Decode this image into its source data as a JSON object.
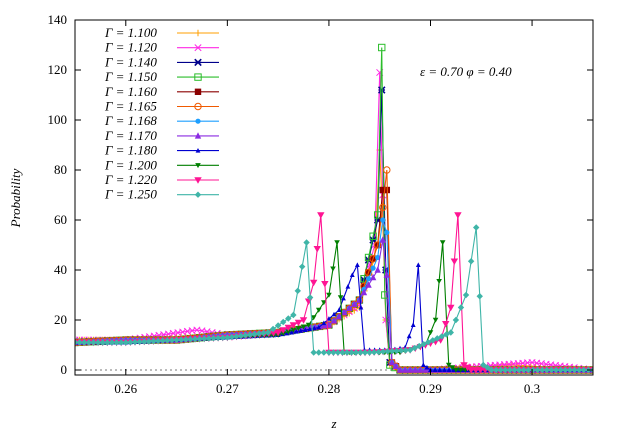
{
  "chart_data": {
    "type": "line",
    "title": "",
    "xlabel": "z",
    "ylabel": "Probability",
    "xlim": [
      0.255,
      0.306
    ],
    "ylim": [
      -2,
      140
    ],
    "x_ticks": [
      0.26,
      0.27,
      0.28,
      0.29,
      0.3
    ],
    "x_tick_labels": [
      "0.26",
      "0.27",
      "0.28",
      "0.29",
      "0.3"
    ],
    "y_ticks": [
      0,
      20,
      40,
      60,
      80,
      100,
      120,
      140
    ],
    "y_tick_labels": [
      "0",
      "20",
      "40",
      "60",
      "80",
      "100",
      "120",
      "140"
    ],
    "annotation": "ε = 0.70  φ = 0.40",
    "legend_position": "top-left",
    "grid": false,
    "zero_line": "dotted",
    "series": [
      {
        "name": "Γ = 1.100",
        "color": "#ff9f00",
        "marker": "plus",
        "x": [
          0.255,
          0.26,
          0.265,
          0.27,
          0.275,
          0.28,
          0.283,
          0.2845,
          0.285,
          0.2853,
          0.2856,
          0.286,
          0.287,
          0.29,
          0.298,
          0.306
        ],
        "y": [
          12,
          12,
          13,
          14,
          15,
          18,
          25,
          45,
          88,
          60,
          20,
          2,
          0,
          0,
          2,
          0
        ]
      },
      {
        "name": "Γ = 1.120",
        "color": "#ff29e5",
        "marker": "x",
        "x": [
          0.255,
          0.26,
          0.267,
          0.27,
          0.275,
          0.28,
          0.283,
          0.2845,
          0.285,
          0.2853,
          0.2856,
          0.286,
          0.287,
          0.29,
          0.3,
          0.306
        ],
        "y": [
          12,
          12,
          16,
          14,
          15,
          18,
          26,
          50,
          119,
          70,
          20,
          3,
          0,
          0,
          3,
          0
        ]
      },
      {
        "name": "Γ = 1.140",
        "color": "#00008b",
        "marker": "star",
        "x": [
          0.255,
          0.26,
          0.265,
          0.27,
          0.275,
          0.28,
          0.283,
          0.2848,
          0.2852,
          0.2856,
          0.286,
          0.287,
          0.29,
          0.306
        ],
        "y": [
          11,
          12,
          12,
          14,
          15,
          18,
          28,
          60,
          112,
          40,
          3,
          0,
          0,
          0
        ]
      },
      {
        "name": "Γ = 1.150",
        "color": "#2bbd2b",
        "marker": "square-open",
        "x": [
          0.255,
          0.26,
          0.265,
          0.27,
          0.275,
          0.28,
          0.283,
          0.2848,
          0.2852,
          0.2855,
          0.286,
          0.287,
          0.29,
          0.306
        ],
        "y": [
          11,
          12,
          12,
          14,
          15,
          18,
          28,
          62,
          129,
          30,
          2,
          0,
          0,
          0
        ]
      },
      {
        "name": "Γ = 1.160",
        "color": "#8b0000",
        "marker": "square",
        "x": [
          0.255,
          0.26,
          0.265,
          0.27,
          0.275,
          0.28,
          0.283,
          0.2848,
          0.2853,
          0.2857,
          0.2862,
          0.287,
          0.29,
          0.306
        ],
        "y": [
          11,
          12,
          12,
          14,
          15,
          18,
          28,
          50,
          72,
          72,
          3,
          0,
          0,
          0
        ]
      },
      {
        "name": "Γ = 1.165",
        "color": "#f05a00",
        "marker": "circle-open",
        "x": [
          0.255,
          0.26,
          0.265,
          0.27,
          0.275,
          0.28,
          0.283,
          0.2848,
          0.2853,
          0.2857,
          0.2862,
          0.287,
          0.29,
          0.306
        ],
        "y": [
          11,
          12,
          12,
          14,
          15,
          18,
          28,
          50,
          65,
          80,
          3,
          0,
          0,
          0
        ]
      },
      {
        "name": "Γ = 1.168",
        "color": "#1e9fff",
        "marker": "circle",
        "x": [
          0.255,
          0.26,
          0.265,
          0.27,
          0.275,
          0.28,
          0.283,
          0.2848,
          0.2853,
          0.2857,
          0.2862,
          0.287,
          0.29,
          0.306
        ],
        "y": [
          11,
          12,
          12,
          14,
          15,
          18,
          28,
          45,
          60,
          55,
          3,
          0,
          0,
          0
        ]
      },
      {
        "name": "Γ = 1.170",
        "color": "#8b2be2",
        "marker": "triangle",
        "x": [
          0.255,
          0.26,
          0.265,
          0.27,
          0.275,
          0.28,
          0.283,
          0.2848,
          0.2853,
          0.2857,
          0.2862,
          0.287,
          0.29,
          0.306
        ],
        "y": [
          11,
          12,
          12,
          14,
          15,
          18,
          28,
          40,
          52,
          38,
          3,
          0,
          0,
          0
        ]
      },
      {
        "name": "Γ = 1.180",
        "color": "#0000d0",
        "marker": "triangle-small",
        "x": [
          0.255,
          0.26,
          0.265,
          0.27,
          0.275,
          0.279,
          0.281,
          0.2823,
          0.2828,
          0.2835,
          0.2845,
          0.286,
          0.2875,
          0.2883,
          0.2888,
          0.2893,
          0.29,
          0.306
        ],
        "y": [
          11,
          11,
          12,
          13,
          14,
          17,
          24,
          38,
          42,
          8,
          8,
          8,
          9,
          18,
          42,
          2,
          0,
          0
        ]
      },
      {
        "name": "Γ = 1.200",
        "color": "#007f00",
        "marker": "triangle-down",
        "x": [
          0.255,
          0.26,
          0.265,
          0.27,
          0.275,
          0.278,
          0.28,
          0.2808,
          0.2815,
          0.284,
          0.287,
          0.2895,
          0.2905,
          0.2912,
          0.2918,
          0.2925,
          0.306
        ],
        "y": [
          11,
          11,
          12,
          13,
          14,
          18,
          30,
          51,
          7,
          7,
          7,
          10,
          20,
          51,
          2,
          0,
          0
        ]
      },
      {
        "name": "Γ = 1.220",
        "color": "#ff1493",
        "marker": "triangle-down-large",
        "x": [
          0.255,
          0.26,
          0.265,
          0.27,
          0.275,
          0.2775,
          0.2785,
          0.2792,
          0.28,
          0.284,
          0.288,
          0.291,
          0.292,
          0.2927,
          0.2933,
          0.294,
          0.306
        ],
        "y": [
          11,
          11,
          12,
          13,
          15,
          20,
          35,
          62,
          7,
          7,
          8,
          12,
          25,
          62,
          2,
          0,
          0
        ]
      },
      {
        "name": "Γ = 1.250",
        "color": "#3fb5a8",
        "marker": "diamond",
        "x": [
          0.255,
          0.26,
          0.265,
          0.27,
          0.274,
          0.2765,
          0.2778,
          0.2785,
          0.28,
          0.284,
          0.288,
          0.292,
          0.2935,
          0.2945,
          0.2952,
          0.296,
          0.306
        ],
        "y": [
          11,
          11,
          12,
          13,
          15,
          22,
          51,
          7,
          7,
          7,
          8,
          15,
          30,
          57,
          2,
          0,
          0
        ]
      }
    ]
  }
}
